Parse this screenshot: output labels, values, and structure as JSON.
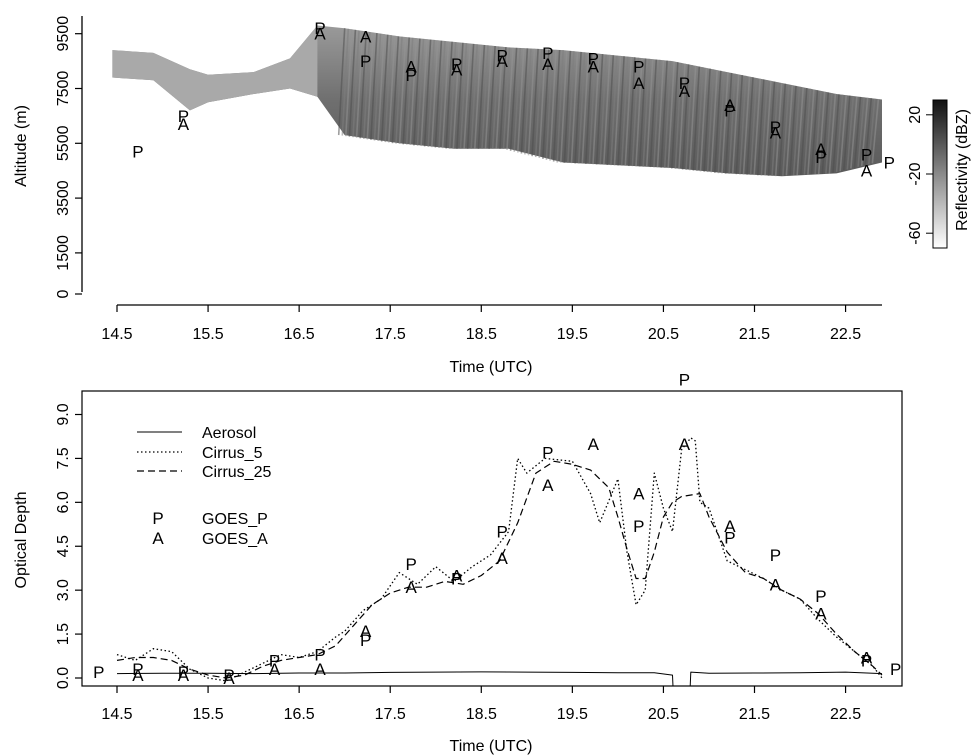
{
  "chart_data": [
    {
      "type": "heatmap",
      "xlabel": "Time (UTC)",
      "ylabel": "Altitude (m)",
      "x_ticks": [
        "14.5",
        "15.5",
        "16.5",
        "17.5",
        "18.5",
        "19.5",
        "20.5",
        "21.5",
        "22.5"
      ],
      "y_ticks": [
        "0",
        "1500",
        "3500",
        "5500",
        "7500",
        "9500"
      ],
      "xlim": [
        14.5,
        22.9
      ],
      "ylim": [
        0,
        10000
      ],
      "colorbar": {
        "label": "Reflectivity (dBZ)",
        "ticks": [
          "20",
          "-20",
          "-60"
        ],
        "range": [
          -70,
          30
        ]
      },
      "echo_profile": {
        "t": [
          14.45,
          14.9,
          15.3,
          15.5,
          16.0,
          16.4,
          16.7,
          17.0,
          17.6,
          18.2,
          18.8,
          19.4,
          20.0,
          20.6,
          21.2,
          21.8,
          22.4,
          22.9
        ],
        "top_m": [
          8900,
          8800,
          8200,
          8000,
          8100,
          8600,
          9800,
          9700,
          9400,
          9200,
          9000,
          8900,
          8700,
          8500,
          8100,
          7700,
          7300,
          7100
        ],
        "bottom_m": [
          7900,
          7800,
          6700,
          7000,
          7300,
          7500,
          7200,
          5800,
          5500,
          5300,
          5300,
          4800,
          4700,
          4600,
          4400,
          4300,
          4400,
          4800
        ]
      },
      "markers": [
        {
          "label": "P",
          "x": 14.73,
          "y": 5200
        },
        {
          "label": "P",
          "x": 15.23,
          "y": 6500
        },
        {
          "label": "A",
          "x": 15.23,
          "y": 6200
        },
        {
          "label": "P",
          "x": 16.73,
          "y": 9700
        },
        {
          "label": "A",
          "x": 16.73,
          "y": 9500
        },
        {
          "label": "A",
          "x": 17.23,
          "y": 9400
        },
        {
          "label": "P",
          "x": 17.23,
          "y": 8500
        },
        {
          "label": "A",
          "x": 17.73,
          "y": 8300
        },
        {
          "label": "P",
          "x": 17.73,
          "y": 8000
        },
        {
          "label": "P",
          "x": 18.23,
          "y": 8400
        },
        {
          "label": "A",
          "x": 18.23,
          "y": 8200
        },
        {
          "label": "P",
          "x": 18.73,
          "y": 8700
        },
        {
          "label": "A",
          "x": 18.73,
          "y": 8500
        },
        {
          "label": "P",
          "x": 19.23,
          "y": 8800
        },
        {
          "label": "A",
          "x": 19.23,
          "y": 8400
        },
        {
          "label": "P",
          "x": 19.73,
          "y": 8600
        },
        {
          "label": "A",
          "x": 19.73,
          "y": 8300
        },
        {
          "label": "P",
          "x": 20.23,
          "y": 8300
        },
        {
          "label": "A",
          "x": 20.23,
          "y": 7700
        },
        {
          "label": "P",
          "x": 20.73,
          "y": 7700
        },
        {
          "label": "A",
          "x": 20.73,
          "y": 7400
        },
        {
          "label": "A",
          "x": 21.23,
          "y": 6900
        },
        {
          "label": "P",
          "x": 21.23,
          "y": 6700
        },
        {
          "label": "P",
          "x": 21.73,
          "y": 6100
        },
        {
          "label": "A",
          "x": 21.73,
          "y": 5900
        },
        {
          "label": "A",
          "x": 22.23,
          "y": 5300
        },
        {
          "label": "P",
          "x": 22.23,
          "y": 5000
        },
        {
          "label": "P",
          "x": 22.73,
          "y": 5100
        },
        {
          "label": "A",
          "x": 22.73,
          "y": 4500
        },
        {
          "label": "P",
          "x": 22.98,
          "y": 4800
        }
      ]
    },
    {
      "type": "line",
      "xlabel": "Time (UTC)",
      "ylabel": "Optical Depth",
      "x_ticks": [
        "14.5",
        "15.5",
        "16.5",
        "17.5",
        "18.5",
        "19.5",
        "20.5",
        "21.5",
        "22.5"
      ],
      "y_ticks": [
        "0.0",
        "1.5",
        "3.0",
        "4.5",
        "6.0",
        "7.5",
        "9.0"
      ],
      "xlim": [
        14.2,
        23.1
      ],
      "ylim": [
        -0.4,
        10.0
      ],
      "legend": {
        "lines": [
          "Aerosol",
          "Cirrus_5",
          "Cirrus_25"
        ],
        "markers": [
          {
            "symbol": "P",
            "label": "GOES_P"
          },
          {
            "symbol": "A",
            "label": "GOES_A"
          }
        ],
        "placement": "top-left"
      },
      "series": [
        {
          "name": "Aerosol",
          "style": "solid",
          "x": [
            14.5,
            15.0,
            15.5,
            16.0,
            16.5,
            17.0,
            17.5,
            18.0,
            18.5,
            19.0,
            19.5,
            20.0,
            20.4,
            20.6,
            20.61,
            20.7,
            20.79,
            20.8,
            21.0,
            21.5,
            22.0,
            22.5,
            22.9
          ],
          "y": [
            0.15,
            0.16,
            0.16,
            0.15,
            0.17,
            0.17,
            0.19,
            0.2,
            0.21,
            0.2,
            0.19,
            0.18,
            0.18,
            0.1,
            -0.6,
            -0.6,
            -0.6,
            0.2,
            0.16,
            0.17,
            0.18,
            0.2,
            0.15
          ]
        },
        {
          "name": "Cirrus_5",
          "style": "dotted",
          "x": [
            14.5,
            14.7,
            14.9,
            15.1,
            15.3,
            15.5,
            15.7,
            15.9,
            16.1,
            16.3,
            16.5,
            16.7,
            16.9,
            17.0,
            17.2,
            17.4,
            17.6,
            17.8,
            18.0,
            18.2,
            18.4,
            18.6,
            18.8,
            18.9,
            19.0,
            19.2,
            19.5,
            19.7,
            19.8,
            20.0,
            20.1,
            20.2,
            20.3,
            20.4,
            20.5,
            20.6,
            20.7,
            20.8,
            20.85,
            20.9,
            21.0,
            21.2,
            21.4,
            21.6,
            21.8,
            22.0,
            22.2,
            22.4,
            22.6,
            22.8,
            22.9
          ],
          "y": [
            0.8,
            0.6,
            1.0,
            0.9,
            0.3,
            0.0,
            -0.1,
            0.2,
            0.5,
            0.8,
            0.7,
            0.9,
            1.4,
            1.6,
            2.3,
            2.7,
            3.6,
            3.2,
            3.8,
            3.3,
            3.8,
            4.2,
            5.0,
            7.5,
            7.0,
            7.5,
            7.4,
            6.3,
            5.3,
            6.8,
            4.3,
            2.5,
            3.0,
            7.0,
            5.8,
            5.0,
            7.8,
            8.2,
            8.1,
            6.0,
            5.8,
            4.0,
            3.7,
            3.4,
            3.0,
            2.7,
            2.0,
            1.4,
            0.9,
            0.4,
            0.0
          ]
        },
        {
          "name": "Cirrus_25",
          "style": "dashed",
          "x": [
            14.5,
            14.7,
            14.9,
            15.1,
            15.3,
            15.5,
            15.7,
            15.9,
            16.1,
            16.3,
            16.5,
            16.7,
            16.9,
            17.1,
            17.3,
            17.5,
            17.7,
            17.9,
            18.1,
            18.3,
            18.5,
            18.7,
            18.9,
            19.1,
            19.3,
            19.5,
            19.7,
            19.9,
            20.0,
            20.1,
            20.2,
            20.3,
            20.4,
            20.5,
            20.6,
            20.7,
            20.9,
            21.0,
            21.2,
            21.4,
            21.6,
            21.8,
            22.0,
            22.2,
            22.4,
            22.6,
            22.8,
            22.9
          ],
          "y": [
            0.6,
            0.7,
            0.7,
            0.6,
            0.3,
            0.1,
            0.0,
            0.1,
            0.4,
            0.6,
            0.7,
            0.8,
            1.1,
            1.8,
            2.5,
            2.9,
            3.1,
            3.1,
            3.3,
            3.2,
            3.5,
            4.0,
            5.3,
            7.0,
            7.4,
            7.3,
            7.1,
            6.5,
            5.5,
            4.4,
            3.4,
            3.4,
            4.3,
            5.5,
            6.0,
            6.2,
            6.3,
            5.5,
            4.3,
            3.6,
            3.4,
            3.0,
            2.7,
            2.2,
            1.5,
            0.9,
            0.4,
            0.1
          ]
        }
      ],
      "markers": [
        {
          "label": "P",
          "x": 14.3,
          "y": 0.2
        },
        {
          "label": "P",
          "x": 14.73,
          "y": 0.3
        },
        {
          "label": "A",
          "x": 14.73,
          "y": 0.1
        },
        {
          "label": "P",
          "x": 15.23,
          "y": 0.2
        },
        {
          "label": "A",
          "x": 15.23,
          "y": 0.1
        },
        {
          "label": "P",
          "x": 15.73,
          "y": 0.1
        },
        {
          "label": "A",
          "x": 15.73,
          "y": 0.0
        },
        {
          "label": "P",
          "x": 16.23,
          "y": 0.6
        },
        {
          "label": "A",
          "x": 16.23,
          "y": 0.3
        },
        {
          "label": "P",
          "x": 16.73,
          "y": 0.8
        },
        {
          "label": "A",
          "x": 16.73,
          "y": 0.3
        },
        {
          "label": "A",
          "x": 17.23,
          "y": 1.6
        },
        {
          "label": "P",
          "x": 17.23,
          "y": 1.3
        },
        {
          "label": "P",
          "x": 17.73,
          "y": 3.9
        },
        {
          "label": "A",
          "x": 17.73,
          "y": 3.1
        },
        {
          "label": "A",
          "x": 18.23,
          "y": 3.5
        },
        {
          "label": "P",
          "x": 18.23,
          "y": 3.4
        },
        {
          "label": "P",
          "x": 18.73,
          "y": 5.0
        },
        {
          "label": "A",
          "x": 18.73,
          "y": 4.1
        },
        {
          "label": "P",
          "x": 19.23,
          "y": 7.7
        },
        {
          "label": "A",
          "x": 19.23,
          "y": 6.6
        },
        {
          "label": "A",
          "x": 19.73,
          "y": 8.0
        },
        {
          "label": "A",
          "x": 20.23,
          "y": 6.3
        },
        {
          "label": "P",
          "x": 20.23,
          "y": 5.2
        },
        {
          "label": "P",
          "x": 20.73,
          "y": 10.2
        },
        {
          "label": "A",
          "x": 20.73,
          "y": 8.0
        },
        {
          "label": "A",
          "x": 21.23,
          "y": 5.2
        },
        {
          "label": "P",
          "x": 21.23,
          "y": 4.8
        },
        {
          "label": "P",
          "x": 21.73,
          "y": 4.2
        },
        {
          "label": "A",
          "x": 21.73,
          "y": 3.2
        },
        {
          "label": "P",
          "x": 22.23,
          "y": 2.8
        },
        {
          "label": "A",
          "x": 22.23,
          "y": 2.2
        },
        {
          "label": "A",
          "x": 22.73,
          "y": 0.7
        },
        {
          "label": "P",
          "x": 22.73,
          "y": 0.6
        },
        {
          "label": "P",
          "x": 23.05,
          "y": 0.3
        }
      ]
    }
  ]
}
